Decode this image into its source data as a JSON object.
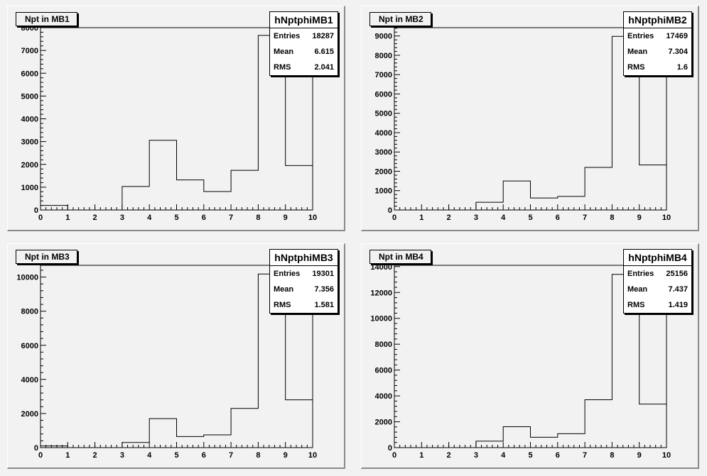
{
  "chart_data": [
    {
      "type": "bar",
      "title": "Npt in MB1",
      "stats": {
        "name": "hNptphiMB1",
        "entries": "18287",
        "mean": "6.615",
        "rms": "2.041"
      },
      "stats_labels": {
        "entries": "Entries",
        "mean": "Mean",
        "rms": "RMS"
      },
      "bin_edges": [
        0,
        1,
        2,
        3,
        4,
        5,
        6,
        7,
        8,
        9,
        10
      ],
      "values": [
        200,
        0,
        0,
        1030,
        3060,
        1320,
        810,
        1740,
        7660,
        1950
      ],
      "xlim": [
        0,
        10
      ],
      "ylim": [
        0,
        8000
      ],
      "xticks": [
        0,
        1,
        2,
        3,
        4,
        5,
        6,
        7,
        8,
        9,
        10
      ],
      "yticks": [
        0,
        1000,
        2000,
        3000,
        4000,
        5000,
        6000,
        7000,
        8000
      ]
    },
    {
      "type": "bar",
      "title": "Npt in MB2",
      "stats": {
        "name": "hNptphiMB2",
        "entries": "17469",
        "mean": "7.304",
        "rms": "1.6"
      },
      "stats_labels": {
        "entries": "Entries",
        "mean": "Mean",
        "rms": "RMS"
      },
      "bin_edges": [
        0,
        1,
        2,
        3,
        4,
        5,
        6,
        7,
        8,
        9,
        10
      ],
      "values": [
        0,
        0,
        0,
        400,
        1500,
        620,
        700,
        2200,
        8980,
        2330
      ],
      "xlim": [
        0,
        10
      ],
      "ylim": [
        0,
        9430
      ],
      "xticks": [
        0,
        1,
        2,
        3,
        4,
        5,
        6,
        7,
        8,
        9,
        10
      ],
      "yticks": [
        0,
        1000,
        2000,
        3000,
        4000,
        5000,
        6000,
        7000,
        8000,
        9000
      ]
    },
    {
      "type": "bar",
      "title": "Npt in MB3",
      "stats": {
        "name": "hNptphiMB3",
        "entries": "19301",
        "mean": "7.356",
        "rms": "1.581"
      },
      "stats_labels": {
        "entries": "Entries",
        "mean": "Mean",
        "rms": "RMS"
      },
      "bin_edges": [
        0,
        1,
        2,
        3,
        4,
        5,
        6,
        7,
        8,
        9,
        10
      ],
      "values": [
        100,
        0,
        0,
        300,
        1700,
        650,
        750,
        2300,
        10180,
        2800
      ],
      "xlim": [
        0,
        10
      ],
      "ylim": [
        0,
        10690
      ],
      "xticks": [
        0,
        1,
        2,
        3,
        4,
        5,
        6,
        7,
        8,
        9,
        10
      ],
      "yticks": [
        0,
        2000,
        4000,
        6000,
        8000,
        10000
      ]
    },
    {
      "type": "bar",
      "title": "Npt in MB4",
      "stats": {
        "name": "hNptphiMB4",
        "entries": "25156",
        "mean": "7.437",
        "rms": "1.419"
      },
      "stats_labels": {
        "entries": "Entries",
        "mean": "Mean",
        "rms": "RMS"
      },
      "bin_edges": [
        0,
        1,
        2,
        3,
        4,
        5,
        6,
        7,
        8,
        9,
        10
      ],
      "values": [
        0,
        0,
        0,
        500,
        1620,
        800,
        1080,
        3700,
        13400,
        3370
      ],
      "xlim": [
        0,
        10
      ],
      "ylim": [
        0,
        14100
      ],
      "xticks": [
        0,
        1,
        2,
        3,
        4,
        5,
        6,
        7,
        8,
        9,
        10
      ],
      "yticks": [
        0,
        2000,
        4000,
        6000,
        8000,
        10000,
        12000,
        14000
      ]
    }
  ]
}
